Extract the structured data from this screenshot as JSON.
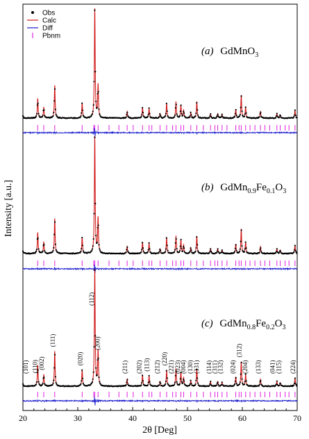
{
  "chart_data": {
    "type": "line",
    "xlabel": "2θ [Deg]",
    "ylabel": "Intensity [a.u.]",
    "xlim": [
      20,
      70
    ],
    "x_ticks": [
      20,
      30,
      40,
      50,
      60,
      70
    ],
    "legend": {
      "placement": "top-left",
      "entries": [
        {
          "name": "Obs",
          "symbol": "dot",
          "color": "#000000"
        },
        {
          "name": "Calc",
          "symbol": "line",
          "color": "#d01818"
        },
        {
          "name": "Diff",
          "symbol": "line",
          "color": "#1a1acc"
        },
        {
          "name": "Pbnm",
          "symbol": "bar",
          "color": "#e020e0"
        }
      ]
    },
    "panels": [
      {
        "label_tag": "(a)",
        "label_formula": [
          {
            "t": "GdMnO",
            "sub": false
          },
          {
            "t": "3",
            "sub": true
          }
        ]
      },
      {
        "label_tag": "(b)",
        "label_formula": [
          {
            "t": "GdMn",
            "sub": false
          },
          {
            "t": "0.9",
            "sub": true
          },
          {
            "t": "Fe",
            "sub": false
          },
          {
            "t": "0.1",
            "sub": true
          },
          {
            "t": "O",
            "sub": false
          },
          {
            "t": "3",
            "sub": true
          }
        ]
      },
      {
        "label_tag": "(c)",
        "label_formula": [
          {
            "t": "GdMn",
            "sub": false
          },
          {
            "t": "0.8",
            "sub": true
          },
          {
            "t": "Fe",
            "sub": false
          },
          {
            "t": "0.2",
            "sub": true
          },
          {
            "t": "O",
            "sub": false
          },
          {
            "t": "3",
            "sub": true
          }
        ]
      }
    ],
    "peaks": [
      {
        "x": 19.9,
        "h": 0.05
      },
      {
        "x": 22.7,
        "h": 0.18
      },
      {
        "x": 23.8,
        "h": 0.1
      },
      {
        "x": 25.8,
        "h": 0.3
      },
      {
        "x": 30.8,
        "h": 0.14
      },
      {
        "x": 33.1,
        "h": 1.0
      },
      {
        "x": 33.7,
        "h": 0.3
      },
      {
        "x": 39.0,
        "h": 0.06
      },
      {
        "x": 41.8,
        "h": 0.1
      },
      {
        "x": 43.0,
        "h": 0.09
      },
      {
        "x": 45.0,
        "h": 0.04
      },
      {
        "x": 46.2,
        "h": 0.14
      },
      {
        "x": 47.9,
        "h": 0.15
      },
      {
        "x": 48.8,
        "h": 0.12
      },
      {
        "x": 49.3,
        "h": 0.07
      },
      {
        "x": 50.6,
        "h": 0.05
      },
      {
        "x": 51.7,
        "h": 0.15
      },
      {
        "x": 54.2,
        "h": 0.04
      },
      {
        "x": 55.5,
        "h": 0.04
      },
      {
        "x": 56.3,
        "h": 0.03
      },
      {
        "x": 58.8,
        "h": 0.08
      },
      {
        "x": 59.8,
        "h": 0.21
      },
      {
        "x": 60.6,
        "h": 0.1
      },
      {
        "x": 63.3,
        "h": 0.06
      },
      {
        "x": 66.3,
        "h": 0.04
      },
      {
        "x": 66.9,
        "h": 0.03
      },
      {
        "x": 69.6,
        "h": 0.07
      }
    ],
    "bragg_positions": [
      22.7,
      23.8,
      25.8,
      30.8,
      32.9,
      33.1,
      33.7,
      35.7,
      37.5,
      39.0,
      40.1,
      41.8,
      43.0,
      43.5,
      45.0,
      46.2,
      47.3,
      47.9,
      48.8,
      49.3,
      50.6,
      51.7,
      52.9,
      54.2,
      55.0,
      55.5,
      56.3,
      57.2,
      58.8,
      59.4,
      59.8,
      60.6,
      61.4,
      62.3,
      63.3,
      64.1,
      65.0,
      66.3,
      66.9,
      67.8,
      68.5,
      69.6
    ],
    "annotations_c": [
      {
        "text": "(101)",
        "x": 20.9
      },
      {
        "text": "(110)",
        "x": 22.6
      },
      {
        "text": "(002)",
        "x": 23.8
      },
      {
        "text": "(111)",
        "x": 25.8
      },
      {
        "text": "(020)",
        "x": 30.8
      },
      {
        "text": "(112)",
        "x": 32.9
      },
      {
        "text": "(200)",
        "x": 34.0
      },
      {
        "text": "(211)",
        "x": 39.0
      },
      {
        "text": "(202)",
        "x": 41.6
      },
      {
        "text": "(113)",
        "x": 43.0
      },
      {
        "text": "(212)",
        "x": 44.9
      },
      {
        "text": "(220)",
        "x": 46.2
      },
      {
        "text": "(221)",
        "x": 47.4
      },
      {
        "text": "(023)",
        "x": 48.6
      },
      {
        "text": "(004)",
        "x": 49.6
      },
      {
        "text": "(130)",
        "x": 50.9
      },
      {
        "text": "(131)",
        "x": 52.0
      },
      {
        "text": "(114)",
        "x": 54.3
      },
      {
        "text": "(311)",
        "x": 55.4
      },
      {
        "text": "(132)",
        "x": 56.4
      },
      {
        "text": "(024)",
        "x": 58.7
      },
      {
        "text": "(312)",
        "x": 59.8
      },
      {
        "text": "(204)",
        "x": 60.9
      },
      {
        "text": "(133)",
        "x": 63.3
      },
      {
        "text": "(041)",
        "x": 65.9
      },
      {
        "text": "(115)",
        "x": 67.0
      },
      {
        "text": "(224)",
        "x": 69.6
      }
    ]
  }
}
